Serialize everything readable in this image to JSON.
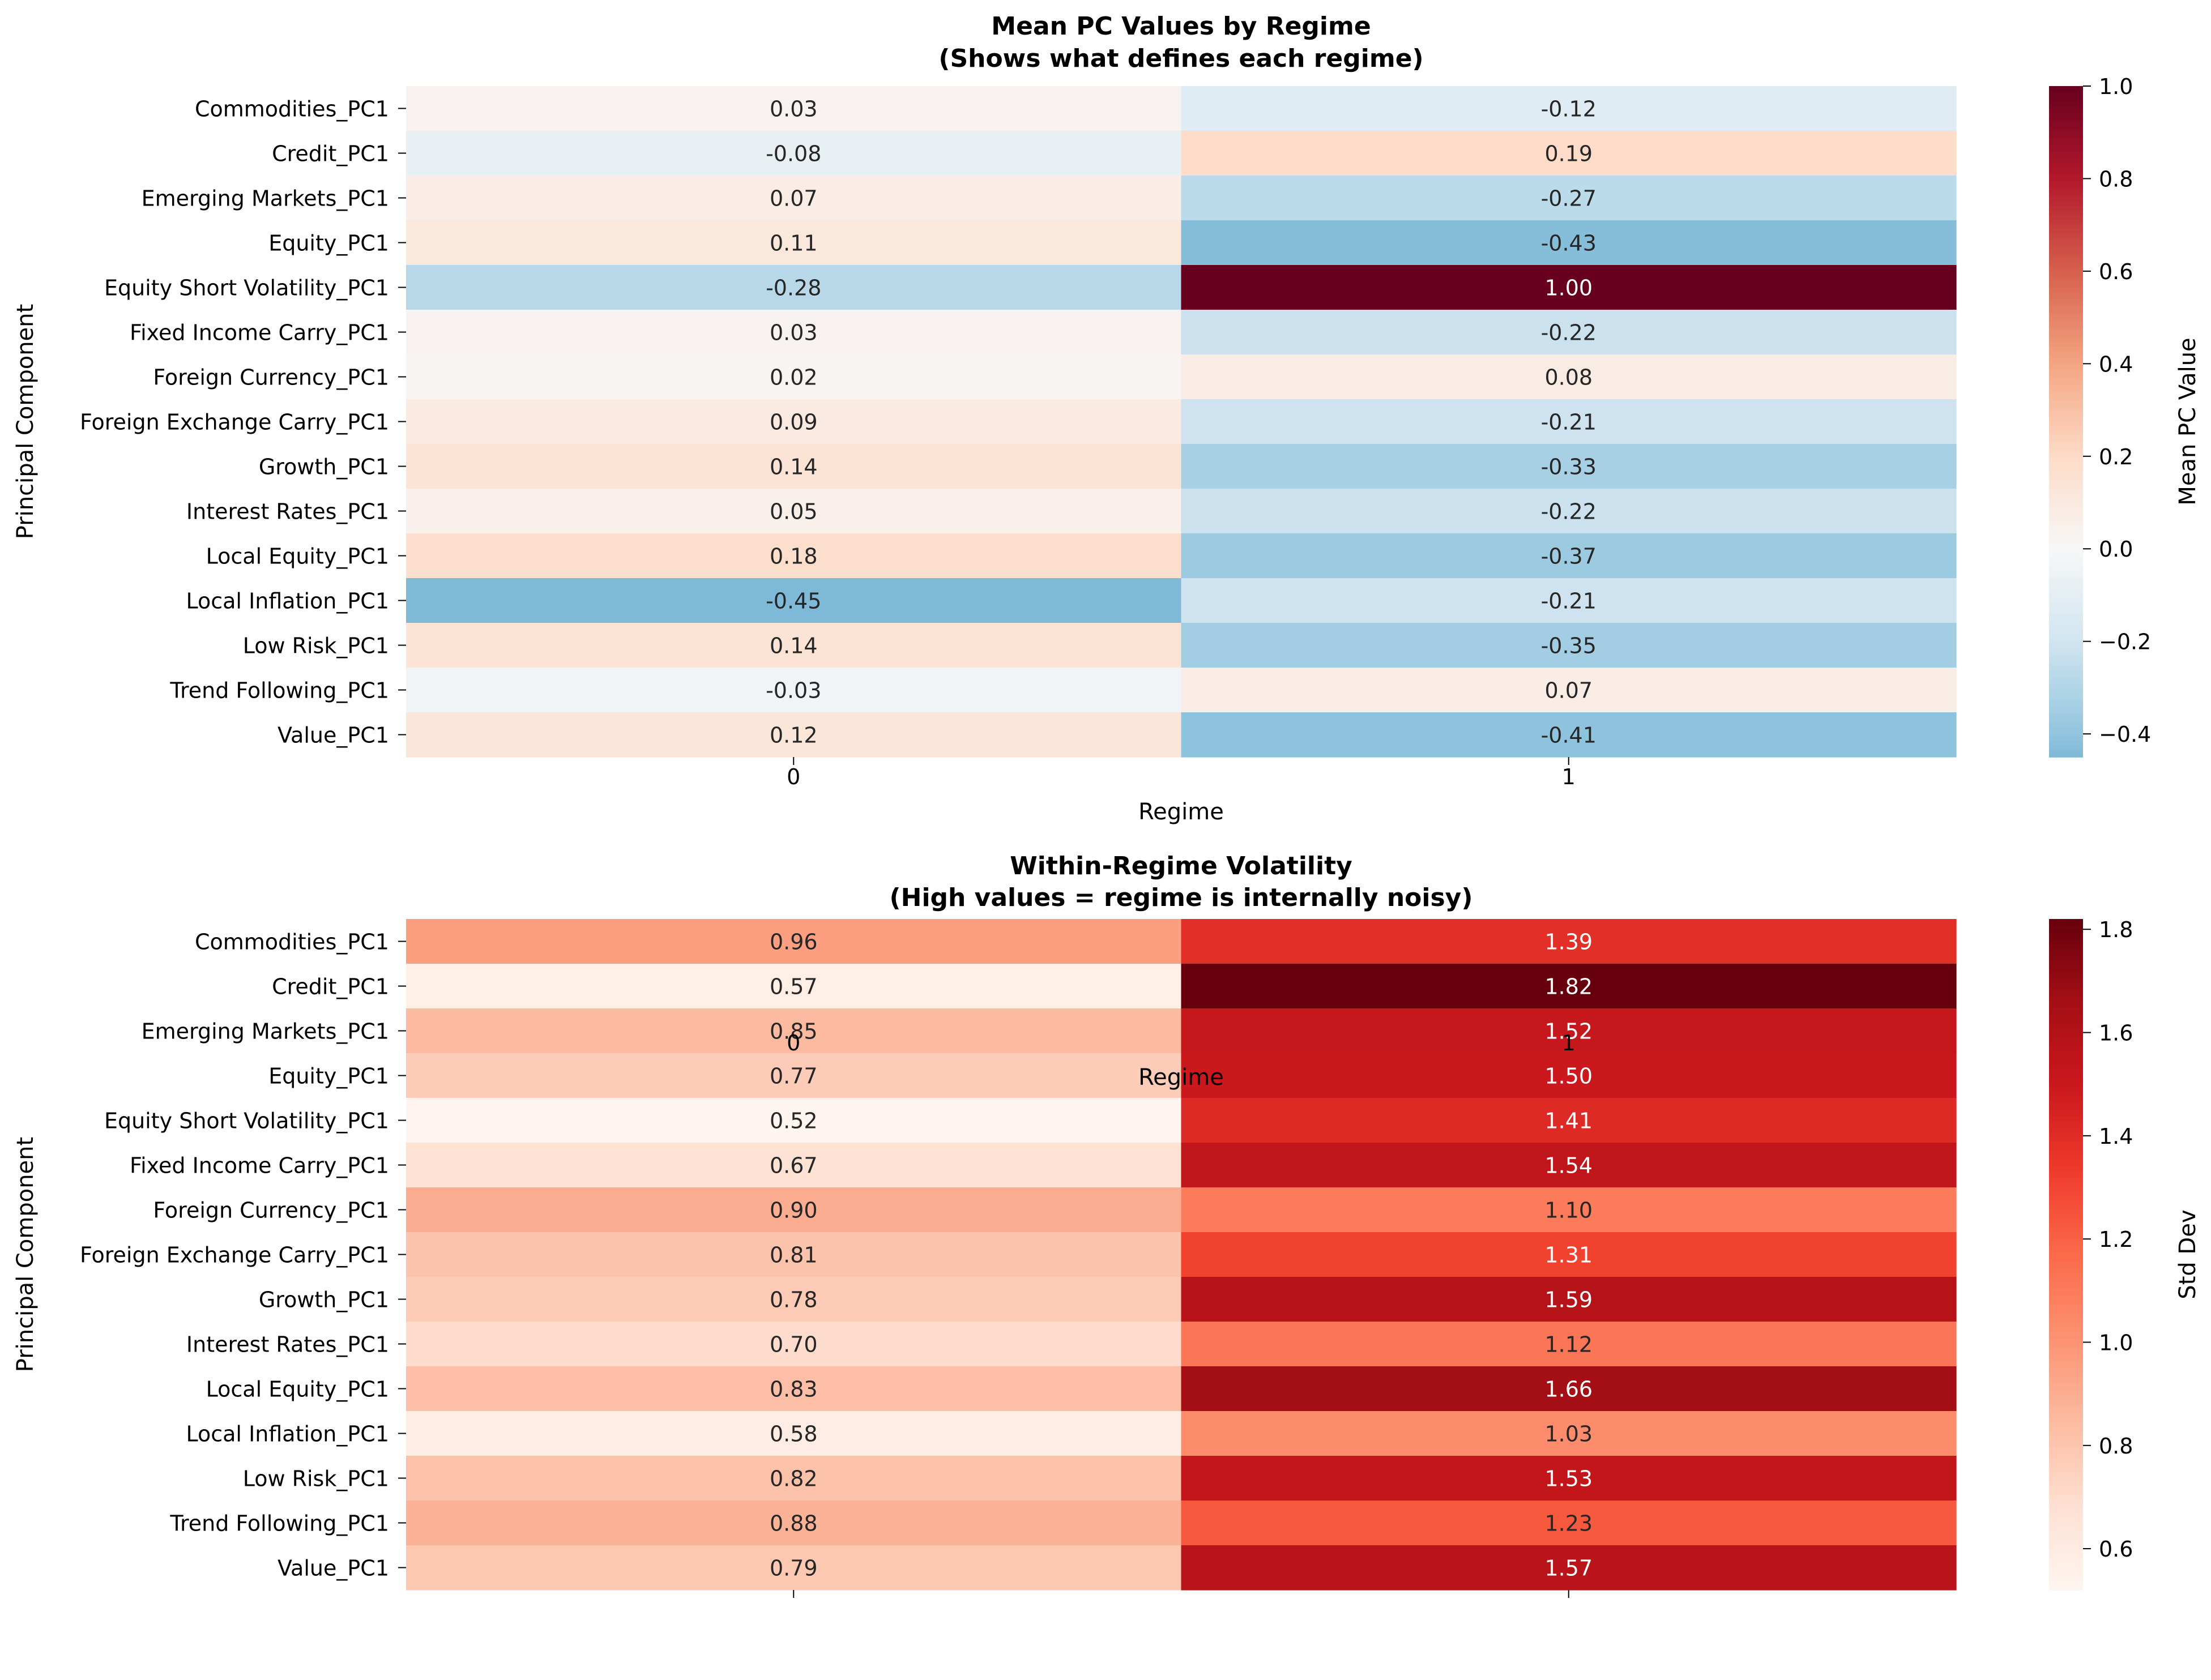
{
  "chart_data": [
    {
      "type": "heatmap",
      "title": "Mean PC Values by Regime\n(Shows what defines each regime)",
      "title_lines": [
        "Mean PC Values by Regime",
        "(Shows what defines each regime)"
      ],
      "xlabel": "Regime",
      "ylabel": "Principal Component",
      "colorbar_label": "Mean PC Value",
      "colormap": "RdBu_r",
      "center": 0,
      "vmin": -0.45,
      "vmax": 1.0,
      "colorbar_ticks": [
        "1.0",
        "0.8",
        "0.6",
        "0.4",
        "0.2",
        "0.0",
        "−0.2",
        "−0.4"
      ],
      "colorbar_tick_values": [
        1.0,
        0.8,
        0.6,
        0.4,
        0.2,
        0.0,
        -0.2,
        -0.4
      ],
      "x_categories": [
        "0",
        "1"
      ],
      "y_categories": [
        "Commodities_PC1",
        "Credit_PC1",
        "Emerging Markets_PC1",
        "Equity_PC1",
        "Equity Short Volatility_PC1",
        "Fixed Income Carry_PC1",
        "Foreign Currency_PC1",
        "Foreign Exchange Carry_PC1",
        "Growth_PC1",
        "Interest Rates_PC1",
        "Local Equity_PC1",
        "Local Inflation_PC1",
        "Low Risk_PC1",
        "Trend Following_PC1",
        "Value_PC1"
      ],
      "values": [
        [
          0.03,
          -0.12
        ],
        [
          -0.08,
          0.19
        ],
        [
          0.07,
          -0.27
        ],
        [
          0.11,
          -0.43
        ],
        [
          -0.28,
          1.0
        ],
        [
          0.03,
          -0.22
        ],
        [
          0.02,
          0.08
        ],
        [
          0.09,
          -0.21
        ],
        [
          0.14,
          -0.33
        ],
        [
          0.05,
          -0.22
        ],
        [
          0.18,
          -0.37
        ],
        [
          -0.45,
          -0.21
        ],
        [
          0.14,
          -0.35
        ],
        [
          -0.03,
          0.07
        ],
        [
          0.12,
          -0.41
        ]
      ],
      "annotations": [
        [
          "0.03",
          "-0.12"
        ],
        [
          "-0.08",
          "0.19"
        ],
        [
          "0.07",
          "-0.27"
        ],
        [
          "0.11",
          "-0.43"
        ],
        [
          "-0.28",
          "1.00"
        ],
        [
          "0.03",
          "-0.22"
        ],
        [
          "0.02",
          "0.08"
        ],
        [
          "0.09",
          "-0.21"
        ],
        [
          "0.14",
          "-0.33"
        ],
        [
          "0.05",
          "-0.22"
        ],
        [
          "0.18",
          "-0.37"
        ],
        [
          "-0.45",
          "-0.21"
        ],
        [
          "0.14",
          "-0.35"
        ],
        [
          "-0.03",
          "0.07"
        ],
        [
          "0.12",
          "-0.41"
        ]
      ]
    },
    {
      "type": "heatmap",
      "title": "Within-Regime Volatility\n(High values = regime is internally noisy)",
      "title_lines": [
        "Within-Regime Volatility",
        "(High values = regime is internally noisy)"
      ],
      "xlabel": "Regime",
      "ylabel": "Principal Component",
      "colorbar_label": "Std Dev",
      "colormap": "Reds",
      "vmin": 0.52,
      "vmax": 1.82,
      "colorbar_ticks": [
        "1.8",
        "1.6",
        "1.4",
        "1.2",
        "1.0",
        "0.8",
        "0.6"
      ],
      "colorbar_tick_values": [
        1.8,
        1.6,
        1.4,
        1.2,
        1.0,
        0.8,
        0.6
      ],
      "x_categories": [
        "0",
        "1"
      ],
      "y_categories": [
        "Commodities_PC1",
        "Credit_PC1",
        "Emerging Markets_PC1",
        "Equity_PC1",
        "Equity Short Volatility_PC1",
        "Fixed Income Carry_PC1",
        "Foreign Currency_PC1",
        "Foreign Exchange Carry_PC1",
        "Growth_PC1",
        "Interest Rates_PC1",
        "Local Equity_PC1",
        "Local Inflation_PC1",
        "Low Risk_PC1",
        "Trend Following_PC1",
        "Value_PC1"
      ],
      "values": [
        [
          0.96,
          1.39
        ],
        [
          0.57,
          1.82
        ],
        [
          0.85,
          1.52
        ],
        [
          0.77,
          1.5
        ],
        [
          0.52,
          1.41
        ],
        [
          0.67,
          1.54
        ],
        [
          0.9,
          1.1
        ],
        [
          0.81,
          1.31
        ],
        [
          0.78,
          1.59
        ],
        [
          0.7,
          1.12
        ],
        [
          0.83,
          1.66
        ],
        [
          0.58,
          1.03
        ],
        [
          0.82,
          1.53
        ],
        [
          0.88,
          1.23
        ],
        [
          0.79,
          1.57
        ]
      ],
      "annotations": [
        [
          "0.96",
          "1.39"
        ],
        [
          "0.57",
          "1.82"
        ],
        [
          "0.85",
          "1.52"
        ],
        [
          "0.77",
          "1.50"
        ],
        [
          "0.52",
          "1.41"
        ],
        [
          "0.67",
          "1.54"
        ],
        [
          "0.90",
          "1.10"
        ],
        [
          "0.81",
          "1.31"
        ],
        [
          "0.78",
          "1.59"
        ],
        [
          "0.70",
          "1.12"
        ],
        [
          "0.83",
          "1.66"
        ],
        [
          "0.58",
          "1.03"
        ],
        [
          "0.82",
          "1.53"
        ],
        [
          "0.88",
          "1.23"
        ],
        [
          "0.79",
          "1.57"
        ]
      ]
    }
  ]
}
